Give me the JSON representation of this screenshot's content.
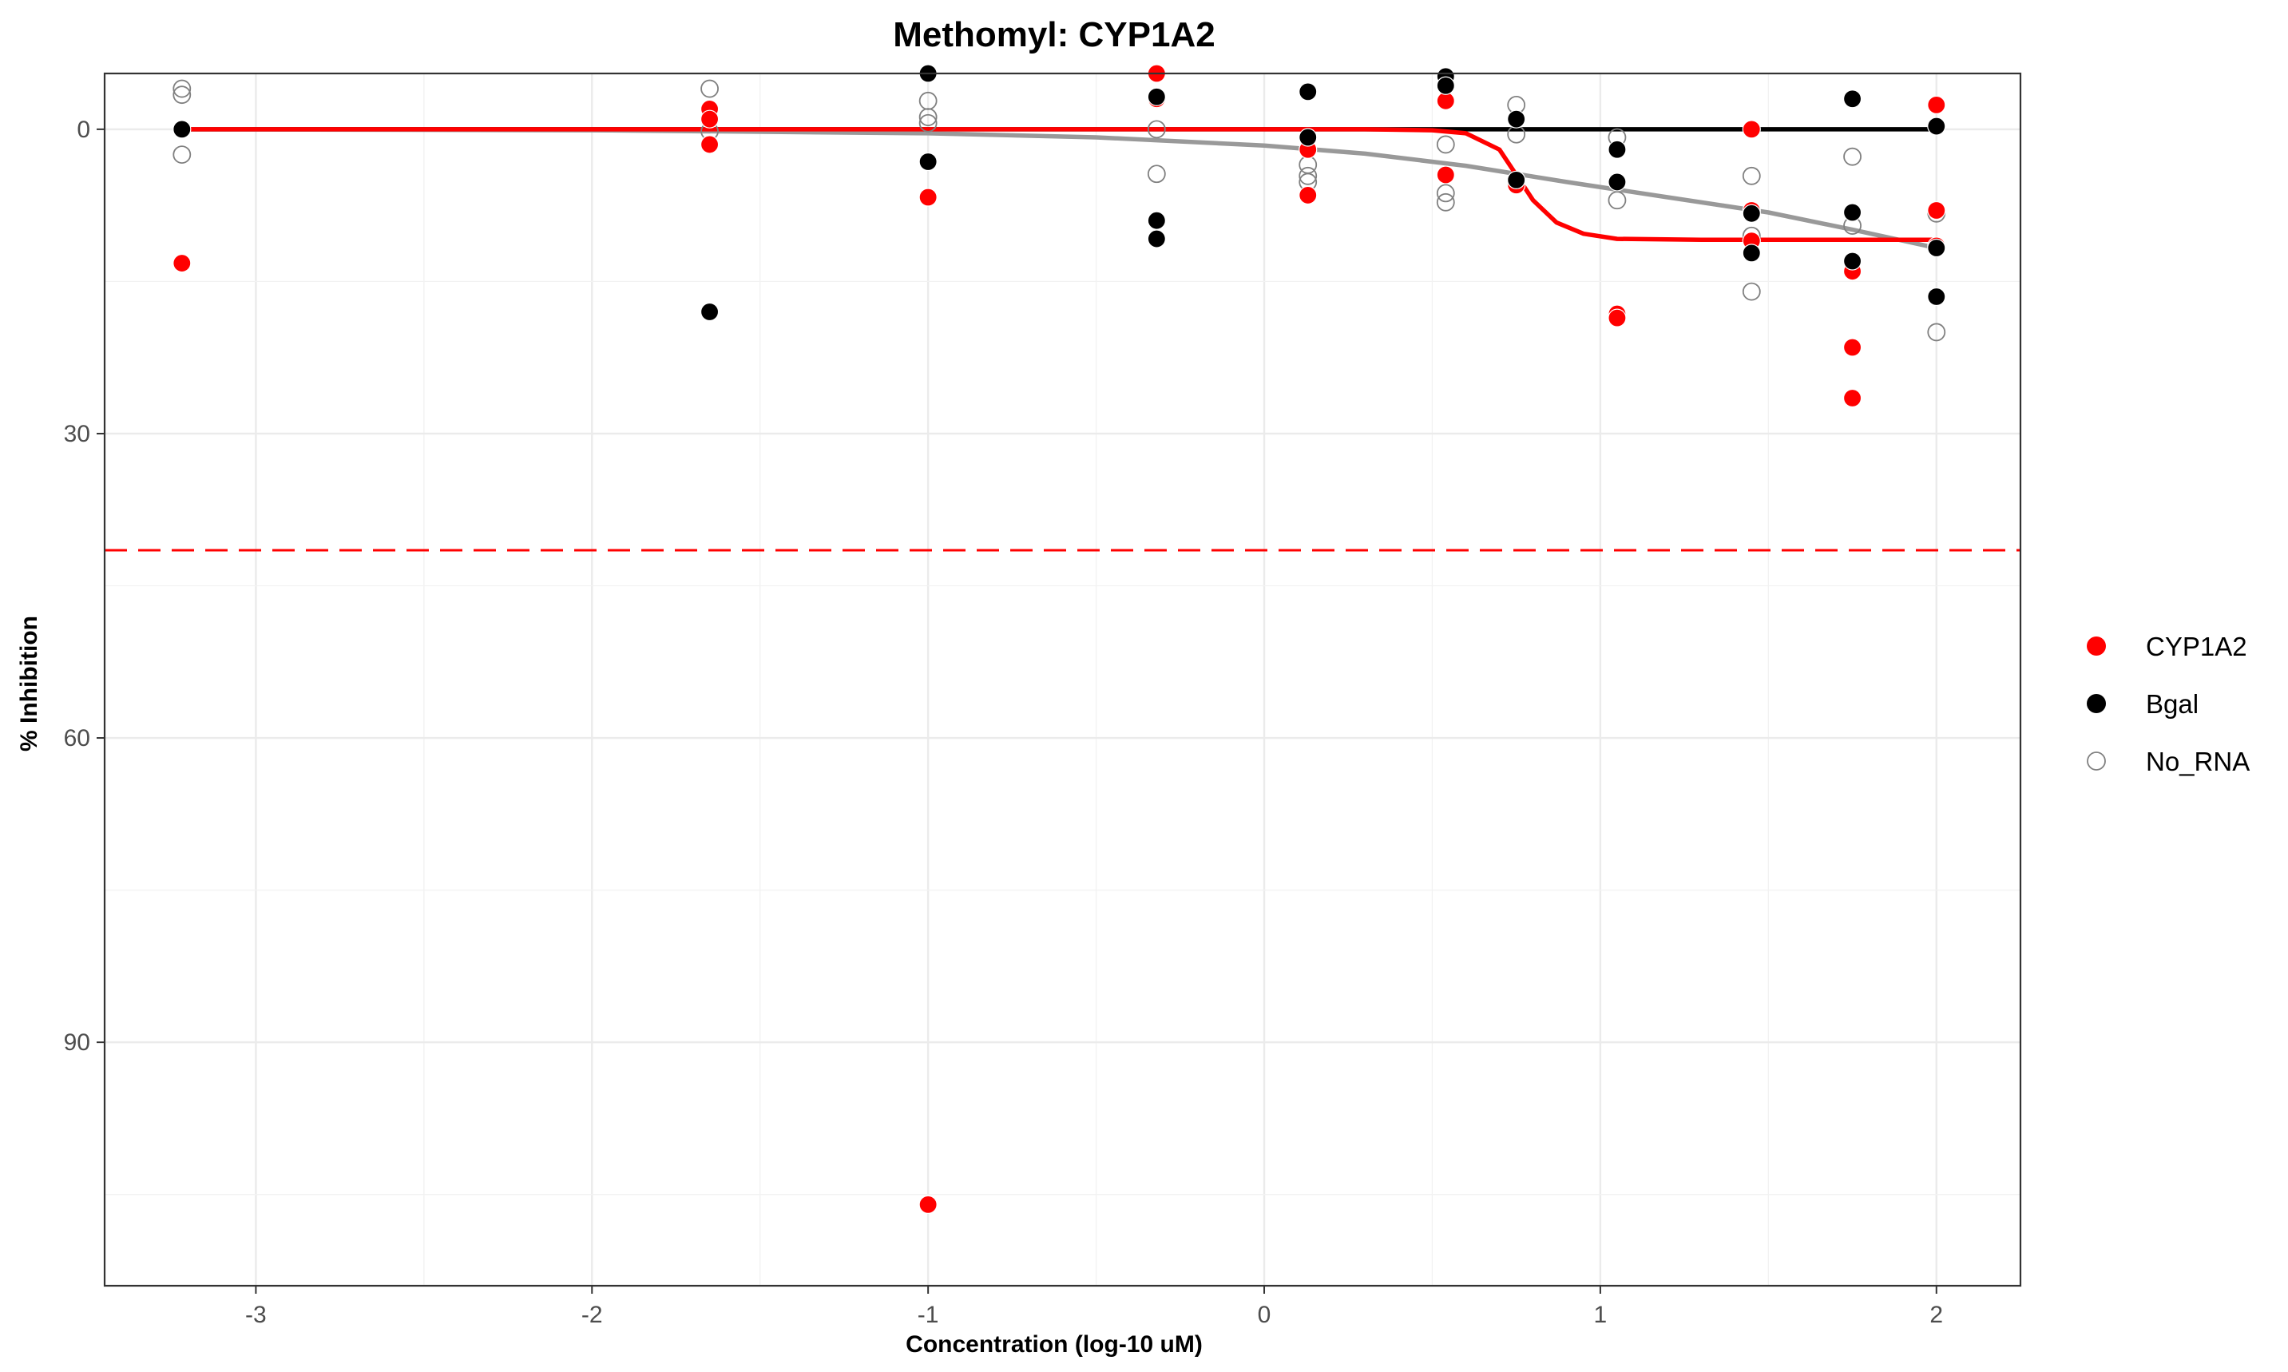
{
  "chart_data": {
    "type": "scatter",
    "title": "Methomyl: CYP1A2",
    "xlabel": "Concentration (log-10 uM)",
    "ylabel": "% Inhibition",
    "xlim": [
      -3.45,
      2.25
    ],
    "ylim": [
      -5.5,
      114
    ],
    "y_reversed": true,
    "x_ticks": [
      -3,
      -2,
      -1,
      0,
      1,
      2
    ],
    "x_tick_labels": [
      "-3",
      "-2",
      "-1",
      "0",
      "1",
      "2"
    ],
    "y_ticks": [
      0,
      30,
      60,
      90
    ],
    "y_tick_labels": [
      "0",
      "30",
      "60",
      "90"
    ],
    "grid": true,
    "legend_position": "right",
    "threshold_line": {
      "y": 41.5,
      "color": "#ff0000",
      "style": "dashed"
    },
    "series": [
      {
        "name": "CYP1A2",
        "color": "#ff0000",
        "marker": "filled-circle",
        "points": [
          [
            -3.22,
            13.2
          ],
          [
            -1.65,
            -2.0
          ],
          [
            -1.65,
            -1.0
          ],
          [
            -1.65,
            1.5
          ],
          [
            -1.0,
            6.7
          ],
          [
            -1.0,
            106.0
          ],
          [
            -0.32,
            -5.5
          ],
          [
            -0.32,
            -3.0
          ],
          [
            0.13,
            2.0
          ],
          [
            0.13,
            6.5
          ],
          [
            0.54,
            -2.8
          ],
          [
            0.54,
            4.5
          ],
          [
            0.75,
            5.5
          ],
          [
            1.05,
            18.2
          ],
          [
            1.05,
            18.6
          ],
          [
            1.45,
            0.0
          ],
          [
            1.45,
            8.0
          ],
          [
            1.45,
            11.0
          ],
          [
            1.75,
            14.0
          ],
          [
            1.75,
            21.5
          ],
          [
            1.75,
            26.5
          ],
          [
            2.0,
            -2.4
          ],
          [
            2.0,
            8.0
          ],
          [
            2.0,
            11.5
          ]
        ],
        "fit_curve": [
          [
            -3.22,
            0.0
          ],
          [
            0.0,
            0.0
          ],
          [
            0.3,
            0.0
          ],
          [
            0.5,
            0.1
          ],
          [
            0.6,
            0.4
          ],
          [
            0.7,
            2.0
          ],
          [
            0.75,
            4.5
          ],
          [
            0.8,
            7.0
          ],
          [
            0.87,
            9.2
          ],
          [
            0.95,
            10.3
          ],
          [
            1.05,
            10.8
          ],
          [
            1.3,
            10.9
          ],
          [
            2.0,
            10.9
          ]
        ]
      },
      {
        "name": "Bgal",
        "color": "#000000",
        "marker": "filled-circle",
        "points": [
          [
            -3.22,
            0.0
          ],
          [
            -1.65,
            18.0
          ],
          [
            -1.0,
            -5.5
          ],
          [
            -1.0,
            3.2
          ],
          [
            -0.32,
            -3.2
          ],
          [
            -0.32,
            9.0
          ],
          [
            -0.32,
            10.8
          ],
          [
            0.13,
            -3.7
          ],
          [
            0.13,
            0.8
          ],
          [
            0.54,
            -5.2
          ],
          [
            0.54,
            -4.3
          ],
          [
            0.75,
            -1.0
          ],
          [
            0.75,
            5.0
          ],
          [
            1.05,
            2.0
          ],
          [
            1.05,
            5.2
          ],
          [
            1.45,
            8.3
          ],
          [
            1.45,
            12.2
          ],
          [
            1.75,
            -3.0
          ],
          [
            1.75,
            8.2
          ],
          [
            1.75,
            13.0
          ],
          [
            2.0,
            -0.3
          ],
          [
            2.0,
            11.7
          ],
          [
            2.0,
            16.5
          ]
        ],
        "fit_curve": [
          [
            -3.22,
            0.0
          ],
          [
            2.0,
            0.0
          ]
        ]
      },
      {
        "name": "No_RNA",
        "color": "#808080",
        "marker": "open-circle",
        "points": [
          [
            -3.22,
            -4.0
          ],
          [
            -3.22,
            -3.4
          ],
          [
            -3.22,
            2.5
          ],
          [
            -1.65,
            -4.0
          ],
          [
            -1.65,
            -1.0
          ],
          [
            -1.65,
            0.2
          ],
          [
            -1.0,
            -2.8
          ],
          [
            -1.0,
            -1.2
          ],
          [
            -1.0,
            -0.6
          ],
          [
            -0.32,
            -3.0
          ],
          [
            -0.32,
            0.0
          ],
          [
            -0.32,
            4.4
          ],
          [
            0.13,
            3.5
          ],
          [
            0.13,
            4.6
          ],
          [
            0.13,
            5.2
          ],
          [
            0.54,
            1.5
          ],
          [
            0.54,
            6.3
          ],
          [
            0.54,
            7.2
          ],
          [
            0.75,
            -2.4
          ],
          [
            0.75,
            0.5
          ],
          [
            0.75,
            5.4
          ],
          [
            1.05,
            0.8
          ],
          [
            1.05,
            7.0
          ],
          [
            1.45,
            4.6
          ],
          [
            1.45,
            10.5
          ],
          [
            1.45,
            16.0
          ],
          [
            1.75,
            2.7
          ],
          [
            1.75,
            9.5
          ],
          [
            2.0,
            8.3
          ],
          [
            2.0,
            20.0
          ]
        ],
        "fit_curve": [
          [
            -3.22,
            0.0
          ],
          [
            -2.0,
            0.1
          ],
          [
            -1.0,
            0.4
          ],
          [
            -0.5,
            0.8
          ],
          [
            0.0,
            1.6
          ],
          [
            0.3,
            2.4
          ],
          [
            0.6,
            3.6
          ],
          [
            0.9,
            5.2
          ],
          [
            1.2,
            6.7
          ],
          [
            1.5,
            8.2
          ],
          [
            1.75,
            9.9
          ],
          [
            2.0,
            11.7
          ]
        ]
      }
    ]
  }
}
